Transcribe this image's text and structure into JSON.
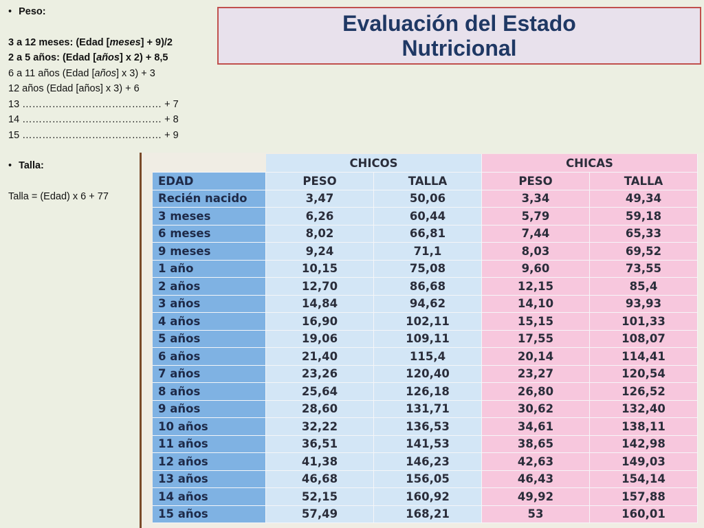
{
  "title": {
    "line1": "Evaluación del Estado",
    "line2": "Nutricional"
  },
  "notes": {
    "peso_label": "Peso:",
    "peso_formulas": [
      "3 a 12 meses: (Edad [meses] + 9)/2",
      "2 a 5 años: (Edad [años] x 2) + 8,5",
      "6 a 11 años (Edad [años] x 3) + 3",
      "12 años (Edad [años] x 3) + 6",
      "13 …………………………………… + 7",
      "14 …………………………………… + 8",
      "15 …………………………………… + 9"
    ],
    "talla_label": "Talla:",
    "talla_formula": "Talla = (Edad) x 6 + 77"
  },
  "table": {
    "group_boys": "CHICOS",
    "group_girls": "CHICAS",
    "col_age": "EDAD",
    "col_weight": "PESO",
    "col_height": "TALLA",
    "rows": [
      {
        "age": "Recién nacido",
        "bw": "3,47",
        "bh": "50,06",
        "gw": "3,34",
        "gh": "49,34"
      },
      {
        "age": "3 meses",
        "bw": "6,26",
        "bh": "60,44",
        "gw": "5,79",
        "gh": "59,18"
      },
      {
        "age": "6 meses",
        "bw": "8,02",
        "bh": "66,81",
        "gw": "7,44",
        "gh": "65,33"
      },
      {
        "age": "9 meses",
        "bw": "9,24",
        "bh": "71,1",
        "gw": "8,03",
        "gh": "69,52"
      },
      {
        "age": "1 año",
        "bw": "10,15",
        "bh": "75,08",
        "gw": "9,60",
        "gh": "73,55"
      },
      {
        "age": "2 años",
        "bw": "12,70",
        "bh": "86,68",
        "gw": "12,15",
        "gh": "85,4"
      },
      {
        "age": "3 años",
        "bw": "14,84",
        "bh": "94,62",
        "gw": "14,10",
        "gh": "93,93"
      },
      {
        "age": "4 años",
        "bw": "16,90",
        "bh": "102,11",
        "gw": "15,15",
        "gh": "101,33"
      },
      {
        "age": "5 años",
        "bw": "19,06",
        "bh": "109,11",
        "gw": "17,55",
        "gh": "108,07"
      },
      {
        "age": "6 años",
        "bw": "21,40",
        "bh": "115,4",
        "gw": "20,14",
        "gh": "114,41"
      },
      {
        "age": "7 años",
        "bw": "23,26",
        "bh": "120,40",
        "gw": "23,27",
        "gh": "120,54"
      },
      {
        "age": "8 años",
        "bw": "25,64",
        "bh": "126,18",
        "gw": "26,80",
        "gh": "126,52"
      },
      {
        "age": "9 años",
        "bw": "28,60",
        "bh": "131,71",
        "gw": "30,62",
        "gh": "132,40"
      },
      {
        "age": "10 años",
        "bw": "32,22",
        "bh": "136,53",
        "gw": "34,61",
        "gh": "138,11"
      },
      {
        "age": "11 años",
        "bw": "36,51",
        "bh": "141,53",
        "gw": "38,65",
        "gh": "142,98"
      },
      {
        "age": "12 años",
        "bw": "41,38",
        "bh": "146,23",
        "gw": "42,63",
        "gh": "149,03"
      },
      {
        "age": "13 años",
        "bw": "46,68",
        "bh": "156,05",
        "gw": "46,43",
        "gh": "154,14"
      },
      {
        "age": "14 años",
        "bw": "52,15",
        "bh": "160,92",
        "gw": "49,92",
        "gh": "157,88"
      },
      {
        "age": "15 años",
        "bw": "57,49",
        "bh": "168,21",
        "gw": "53",
        "gh": "160,01"
      }
    ]
  }
}
